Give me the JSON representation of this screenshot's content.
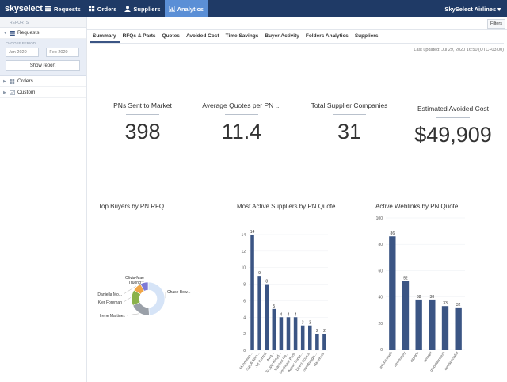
{
  "app": {
    "logo": "skyselect",
    "nav": [
      {
        "label": "Requests",
        "icon": "list-icon"
      },
      {
        "label": "Orders",
        "icon": "orders-icon"
      },
      {
        "label": "Suppliers",
        "icon": "user-icon"
      },
      {
        "label": "Analytics",
        "icon": "chart-icon",
        "active": true
      }
    ],
    "account": "SkySelect Airlines ▾"
  },
  "sidebar": {
    "header": "REPORTS",
    "requests_label": "Requests",
    "period_label": "CHOOSE PERIOD",
    "date_from": "Jan 2020",
    "date_to": "Feb 2020",
    "show_report": "Show report",
    "orders_label": "Orders",
    "custom_label": "Custom"
  },
  "filters_label": "Filters",
  "tabs": [
    "Summary",
    "RFQs & Parts",
    "Quotes",
    "Avoided Cost",
    "Time Savings",
    "Buyer Activity",
    "Folders Analytics",
    "Suppliers"
  ],
  "last_updated": "Last updated: Jul 29, 2020 16:50 (UTC+03:00)",
  "kpis": [
    {
      "label": "PNs Sent to Market",
      "value": "398"
    },
    {
      "label": "Average Quotes per PN ...",
      "value": "11.4"
    },
    {
      "label": "Total Supplier Companies",
      "value": "31"
    },
    {
      "label": "Estimated Avoided Cost",
      "value": "$49,909"
    }
  ],
  "colors": {
    "accent": "#3b5584",
    "topbar": "#1f3a66",
    "nav_active": "#5b8fd6"
  },
  "chart_data": [
    {
      "type": "pie",
      "title": "Top Buyers by PN RFQ",
      "labels": [
        "Chase Bow...",
        "Irene Martinez",
        "Kier Foreman",
        "Daniella Mo...",
        "Olivia-Mae Truong"
      ],
      "values": [
        45,
        18,
        14,
        8,
        7
      ],
      "colors": [
        "#d6e4f7",
        "#9aa0a8",
        "#8bb24a",
        "#f0a646",
        "#7d7ad6"
      ]
    },
    {
      "type": "bar",
      "title": "Most Active Suppliers by PN Quote",
      "categories": [
        "Mongolian...",
        "Suppli Aero...",
        "Jet Control",
        "Aviq...",
        "Supply Kingd...",
        "Stardust Ha...",
        "Southeast Parts",
        "Airpac Suppl...",
        "Direct Source",
        "Sandbagger...",
        "Hazelnuts"
      ],
      "values": [
        14,
        9,
        8,
        5,
        4,
        4,
        4,
        3,
        3,
        2,
        2
      ],
      "ylim": [
        0,
        14
      ],
      "yticks": [
        0,
        2,
        4,
        6,
        8,
        10,
        12,
        14
      ],
      "color": "#3b5584"
    },
    {
      "type": "bar",
      "title": "Active Weblinks by PN Quote",
      "categories": [
        "avionicsweb",
        "aerosupply",
        "airparts",
        "aeroqet",
        "globalaerotech",
        "aerospecialist"
      ],
      "values": [
        86,
        52,
        38,
        38,
        33,
        32
      ],
      "ylim": [
        0,
        100
      ],
      "yticks": [
        0,
        20,
        40,
        60,
        80,
        100
      ],
      "color": "#3b5584"
    }
  ]
}
